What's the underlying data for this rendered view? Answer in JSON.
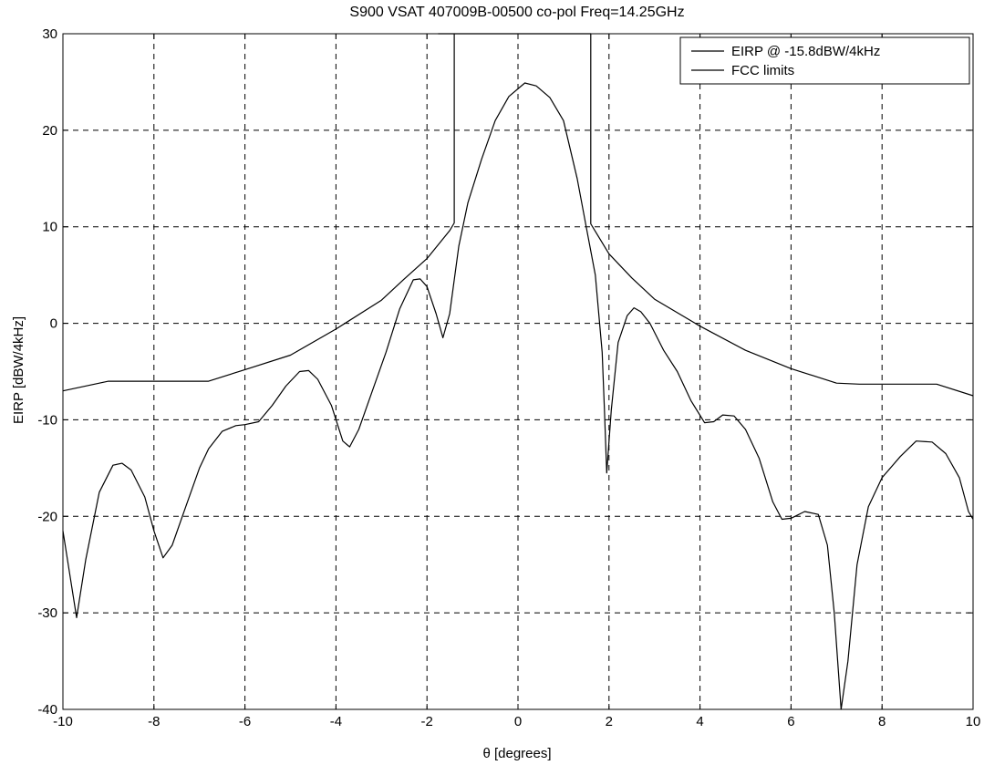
{
  "chart_data": {
    "type": "line",
    "title": "S900 VSAT 407009B-00500 co-pol Freq=14.25GHz",
    "xlabel": "θ [degrees]",
    "ylabel": "EIRP [dBW/4kHz]",
    "xlim": [
      -10,
      10
    ],
    "ylim": [
      -40,
      30
    ],
    "xticks": [
      -10,
      -8,
      -6,
      -4,
      -2,
      0,
      2,
      4,
      6,
      8,
      10
    ],
    "yticks": [
      -40,
      -30,
      -20,
      -10,
      0,
      10,
      20,
      30
    ],
    "grid": true,
    "legend_position": "top-right",
    "series": [
      {
        "name": "EIRP @ -15.8dBW/4kHz",
        "color": "#000000",
        "points": [
          [
            -10,
            -21.5
          ],
          [
            -9.85,
            -26
          ],
          [
            -9.7,
            -30.5
          ],
          [
            -9.5,
            -24.5
          ],
          [
            -9.2,
            -17.5
          ],
          [
            -8.9,
            -14.7
          ],
          [
            -8.7,
            -14.5
          ],
          [
            -8.5,
            -15.2
          ],
          [
            -8.2,
            -18
          ],
          [
            -8.0,
            -21.5
          ],
          [
            -7.8,
            -24.3
          ],
          [
            -7.6,
            -23
          ],
          [
            -7.3,
            -19
          ],
          [
            -7.0,
            -15
          ],
          [
            -6.8,
            -13
          ],
          [
            -6.5,
            -11.2
          ],
          [
            -6.2,
            -10.6
          ],
          [
            -6.0,
            -10.5
          ],
          [
            -5.7,
            -10.2
          ],
          [
            -5.4,
            -8.5
          ],
          [
            -5.1,
            -6.5
          ],
          [
            -4.8,
            -5
          ],
          [
            -4.6,
            -4.9
          ],
          [
            -4.4,
            -5.8
          ],
          [
            -4.1,
            -8.5
          ],
          [
            -3.85,
            -12.2
          ],
          [
            -3.7,
            -12.8
          ],
          [
            -3.5,
            -11
          ],
          [
            -3.2,
            -7
          ],
          [
            -2.9,
            -3
          ],
          [
            -2.6,
            1.5
          ],
          [
            -2.3,
            4.5
          ],
          [
            -2.15,
            4.6
          ],
          [
            -2.0,
            3.8
          ],
          [
            -1.8,
            1
          ],
          [
            -1.65,
            -1.5
          ],
          [
            -1.5,
            1
          ],
          [
            -1.3,
            8
          ],
          [
            -1.1,
            12.5
          ],
          [
            -0.8,
            17
          ],
          [
            -0.5,
            21
          ],
          [
            -0.2,
            23.5
          ],
          [
            0.15,
            24.9
          ],
          [
            0.4,
            24.6
          ],
          [
            0.7,
            23.4
          ],
          [
            1.0,
            21
          ],
          [
            1.3,
            15
          ],
          [
            1.5,
            10
          ],
          [
            1.7,
            5
          ],
          [
            1.85,
            -3
          ],
          [
            1.9,
            -9
          ],
          [
            1.95,
            -15.5
          ],
          [
            2.05,
            -9
          ],
          [
            2.2,
            -2
          ],
          [
            2.4,
            0.8
          ],
          [
            2.55,
            1.6
          ],
          [
            2.7,
            1.2
          ],
          [
            2.9,
            0
          ],
          [
            3.2,
            -2.8
          ],
          [
            3.5,
            -5
          ],
          [
            3.8,
            -8
          ],
          [
            4.1,
            -10.3
          ],
          [
            4.3,
            -10.2
          ],
          [
            4.5,
            -9.5
          ],
          [
            4.75,
            -9.6
          ],
          [
            5.0,
            -11
          ],
          [
            5.3,
            -14
          ],
          [
            5.6,
            -18.5
          ],
          [
            5.8,
            -20.3
          ],
          [
            6.0,
            -20.2
          ],
          [
            6.3,
            -19.5
          ],
          [
            6.6,
            -19.8
          ],
          [
            6.8,
            -23
          ],
          [
            6.95,
            -30
          ],
          [
            7.1,
            -40
          ],
          [
            7.25,
            -35
          ],
          [
            7.45,
            -25
          ],
          [
            7.7,
            -19
          ],
          [
            8.0,
            -16
          ],
          [
            8.4,
            -13.8
          ],
          [
            8.75,
            -12.2
          ],
          [
            9.1,
            -12.3
          ],
          [
            9.4,
            -13.5
          ],
          [
            9.7,
            -16
          ],
          [
            9.9,
            -19.5
          ],
          [
            10,
            -20.3
          ]
        ]
      },
      {
        "name": "FCC limits",
        "color": "#000000",
        "points": [
          [
            -10,
            -7
          ],
          [
            -9.0,
            -6.0
          ],
          [
            -6.8,
            -6.0
          ],
          [
            -6.0,
            -4.8
          ],
          [
            -5.0,
            -3.3
          ],
          [
            -4.0,
            -0.6
          ],
          [
            -3.0,
            2.4
          ],
          [
            -2.5,
            4.6
          ],
          [
            -2.0,
            6.7
          ],
          [
            -1.5,
            9.6
          ],
          [
            -1.4,
            10.4
          ],
          [
            -1.4,
            30
          ],
          [
            -1.75,
            30
          ],
          [
            -1.75,
            30
          ],
          [
            1.6,
            30
          ],
          [
            1.6,
            10.3
          ],
          [
            2.0,
            7.2
          ],
          [
            2.5,
            4.7
          ],
          [
            3.0,
            2.5
          ],
          [
            4.0,
            -0.3
          ],
          [
            5.0,
            -2.8
          ],
          [
            6.0,
            -4.7
          ],
          [
            7.0,
            -6.2
          ],
          [
            7.5,
            -6.3
          ],
          [
            9.2,
            -6.3
          ],
          [
            10,
            -7.5
          ]
        ]
      }
    ]
  }
}
